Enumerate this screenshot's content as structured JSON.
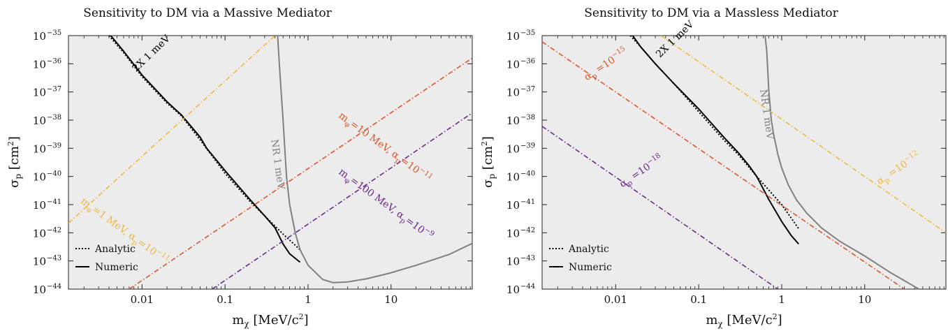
{
  "colors": {
    "black": "#000000",
    "gray": "#808080",
    "yellow": "#f0b63e",
    "orange": "#d9572c",
    "purple": "#6b2a8a",
    "background": "#ececec"
  },
  "chart_data": [
    {
      "type": "line",
      "title": "Sensitivity to DM via a Massive Mediator",
      "xlabel": "m_χ [MeV/c²]",
      "ylabel": "σ_p [cm²]",
      "xscale": "log",
      "yscale": "log",
      "xlim": [
        0.0013,
        95
      ],
      "ylim": [
        1e-44,
        1e-35
      ],
      "x_ticks": [
        0.01,
        0.1,
        1,
        10
      ],
      "x_tick_labels": [
        "0.01",
        "0.1",
        "1",
        "10"
      ],
      "y_ticks": [
        1e-35,
        1e-36,
        1e-37,
        1e-38,
        1e-39,
        1e-40,
        1e-41,
        1e-42,
        1e-43,
        1e-44
      ],
      "y_tick_exponents": [
        "−35",
        "−36",
        "−37",
        "−38",
        "−39",
        "−40",
        "−41",
        "−42",
        "−43",
        "−44"
      ],
      "y_tick_base": "10",
      "legend": {
        "position": "bottom-left",
        "entries": [
          {
            "label": "Analytic",
            "style": "dotted"
          },
          {
            "label": "Numeric",
            "style": "solid"
          }
        ]
      },
      "series": [
        {
          "name": "2X 1 meV analytic",
          "color": "black",
          "style": "dotted",
          "x": [
            0.004,
            0.006,
            0.01,
            0.02,
            0.03,
            0.05,
            0.1,
            0.2,
            0.3,
            0.5,
            0.8
          ],
          "y": [
            1e-35,
            2.5e-36,
            3.5e-37,
            4e-38,
            1.4e-38,
            2e-39,
            1.3e-40,
            1.3e-41,
            4e-42,
            9e-43,
            2.5e-43
          ]
        },
        {
          "name": "2X 1 meV numeric",
          "color": "black",
          "style": "solid",
          "x": [
            0.0042,
            0.006,
            0.01,
            0.02,
            0.03,
            0.05,
            0.06,
            0.1,
            0.2,
            0.3,
            0.4,
            0.5,
            0.6,
            0.8
          ],
          "y": [
            1e-35,
            2.8e-36,
            4e-37,
            4.5e-38,
            1.5e-38,
            2.5e-39,
            1e-39,
            1.6e-40,
            1.5e-41,
            4e-42,
            1.5e-42,
            4e-43,
            1.8e-43,
            9e-44
          ]
        },
        {
          "name": "NR 1 meV",
          "color": "gray",
          "style": "solid",
          "x": [
            0.43,
            0.45,
            0.5,
            0.55,
            0.6,
            0.7,
            0.8,
            1,
            1.5,
            2,
            3,
            5,
            10,
            20,
            50,
            95
          ],
          "y": [
            1e-35,
            1e-36,
            1e-38,
            1e-40,
            1e-41,
            1e-42,
            2.5e-43,
            7e-44,
            2.2e-44,
            1.7e-44,
            1.8e-44,
            2.3e-44,
            3.8e-44,
            7e-44,
            1.7e-43,
            4.2e-43
          ]
        },
        {
          "name": "m_φ=1 MeV, α_p=10⁻¹¹",
          "color": "yellow",
          "style": "dashdot",
          "x": [
            0.0013,
            0.4
          ],
          "y": [
            2.2e-42,
            1e-35
          ]
        },
        {
          "name": "m_φ=10 MeV, α_p=10⁻¹¹",
          "color": "orange",
          "style": "dashdot",
          "x": [
            0.007,
            95
          ],
          "y": [
            1e-44,
            1.6e-36
          ]
        },
        {
          "name": "m_φ=100 MeV, α_p=10⁻⁹",
          "color": "purple",
          "style": "dashdot",
          "x": [
            0.07,
            95
          ],
          "y": [
            1e-44,
            1.8e-38
          ]
        }
      ],
      "annotations": [
        {
          "base": "2X 1 meV",
          "sub": "",
          "sup": "",
          "tail": "",
          "color": "black",
          "x": 0.0085,
          "y": 5e-37,
          "rotate": 44
        },
        {
          "base": "NR 1 meV",
          "sub": "",
          "sup": "",
          "tail": "",
          "color": "gray",
          "x": 0.36,
          "y": 2e-39,
          "rotate": -82
        },
        {
          "base": "m",
          "sub": "φ",
          "mid": "=1 MeV, α",
          "sub2": "p",
          "eq": "=10",
          "sup": "−11",
          "color": "yellow",
          "x": 0.0018,
          "y": 1.2e-41,
          "rotate": -36
        },
        {
          "base": "m",
          "sub": "φ",
          "mid": "=10 MeV, α",
          "sub2": "p",
          "eq": "=10",
          "sup": "−11",
          "color": "orange",
          "x": 2.3,
          "y": 1.3e-38,
          "rotate": -36
        },
        {
          "base": "m",
          "sub": "φ",
          "mid": "=100 MeV, α",
          "sub2": "p",
          "eq": "=10",
          "sup": "−9",
          "color": "purple",
          "x": 2.3,
          "y": 1.3e-40,
          "rotate": -36
        }
      ]
    },
    {
      "type": "line",
      "title": "Sensitivity to DM via a Massless Mediator",
      "xlabel": "m_χ [MeV/c²]",
      "ylabel": "σ_p [cm²]",
      "xscale": "log",
      "yscale": "log",
      "xlim": [
        0.0013,
        95
      ],
      "ylim": [
        1e-44,
        1e-35
      ],
      "x_ticks": [
        0.01,
        0.1,
        1,
        10
      ],
      "x_tick_labels": [
        "0.01",
        "0.1",
        "1",
        "10"
      ],
      "y_ticks": [
        1e-35,
        1e-36,
        1e-37,
        1e-38,
        1e-39,
        1e-40,
        1e-41,
        1e-42,
        1e-43,
        1e-44
      ],
      "y_tick_exponents": [
        "−35",
        "−36",
        "−37",
        "−38",
        "−39",
        "−40",
        "−41",
        "−42",
        "−43",
        "−44"
      ],
      "y_tick_base": "10",
      "legend": {
        "position": "bottom-left",
        "entries": [
          {
            "label": "Analytic",
            "style": "dotted"
          },
          {
            "label": "Numeric",
            "style": "solid"
          }
        ]
      },
      "series": [
        {
          "name": "2X 1 meV analytic",
          "color": "black",
          "style": "dotted",
          "x": [
            0.015,
            0.02,
            0.03,
            0.05,
            0.1,
            0.2,
            0.3,
            0.5,
            1,
            1.6
          ],
          "y": [
            1e-35,
            4e-36,
            1e-36,
            2e-37,
            2e-38,
            2e-39,
            6e-40,
            1e-40,
            1e-41,
            1.4e-42
          ]
        },
        {
          "name": "2X 1 meV numeric",
          "color": "black",
          "style": "solid",
          "x": [
            0.016,
            0.02,
            0.03,
            0.05,
            0.1,
            0.2,
            0.3,
            0.4,
            0.5,
            0.7,
            1,
            1.3,
            1.6
          ],
          "y": [
            1e-35,
            4e-36,
            1e-36,
            2e-37,
            2.5e-38,
            2.5e-39,
            7e-40,
            2.5e-40,
            1e-40,
            1.5e-41,
            2.5e-42,
            8e-43,
            4e-43
          ]
        },
        {
          "name": "NR 1 meV",
          "color": "gray",
          "style": "solid",
          "x": [
            0.63,
            0.66,
            0.7,
            0.75,
            0.8,
            0.9,
            1,
            1.2,
            1.5,
            2,
            3,
            5,
            10,
            20,
            45
          ],
          "y": [
            1e-35,
            3e-36,
            1e-37,
            1e-38,
            3e-39,
            6e-40,
            2e-40,
            5e-41,
            1.5e-41,
            5e-42,
            1.5e-42,
            5e-43,
            1.5e-43,
            4e-44,
            1e-44
          ]
        },
        {
          "name": "α_p=10⁻¹²",
          "color": "yellow",
          "style": "dashdot",
          "x": [
            0.035,
            95
          ],
          "y": [
            1e-35,
            1e-42
          ]
        },
        {
          "name": "α_p=10⁻¹⁵",
          "color": "orange",
          "style": "dashdot",
          "x": [
            0.0013,
            30
          ],
          "y": [
            6e-36,
            1e-44
          ]
        },
        {
          "name": "α_p=10⁻¹⁸",
          "color": "purple",
          "style": "dashdot",
          "x": [
            0.0013,
            0.9
          ],
          "y": [
            6e-39,
            1e-44
          ]
        }
      ],
      "annotations": [
        {
          "base": "2X 1 meV",
          "sub": "",
          "sup": "",
          "tail": "",
          "color": "black",
          "x": 0.034,
          "y": 1.6e-36,
          "rotate": 44
        },
        {
          "base": "NR 1 meV",
          "sub": "",
          "sup": "",
          "tail": "",
          "color": "gray",
          "x": 0.55,
          "y": 1.2e-37,
          "rotate": -82
        },
        {
          "base": "α",
          "sub": "p",
          "mid": "",
          "sub2": "",
          "eq": "=10",
          "sup": "−15",
          "color": "orange",
          "x": 0.0045,
          "y": 2.5e-37,
          "rotate": 34
        },
        {
          "base": "α",
          "sub": "p",
          "mid": "",
          "sub2": "",
          "eq": "=10",
          "sup": "−18",
          "color": "purple",
          "x": 0.012,
          "y": 4e-41,
          "rotate": 34
        },
        {
          "base": "α",
          "sub": "p",
          "mid": "",
          "sub2": "",
          "eq": "=10",
          "sup": "−12",
          "color": "yellow",
          "x": 15,
          "y": 5e-41,
          "rotate": 34
        }
      ]
    }
  ]
}
